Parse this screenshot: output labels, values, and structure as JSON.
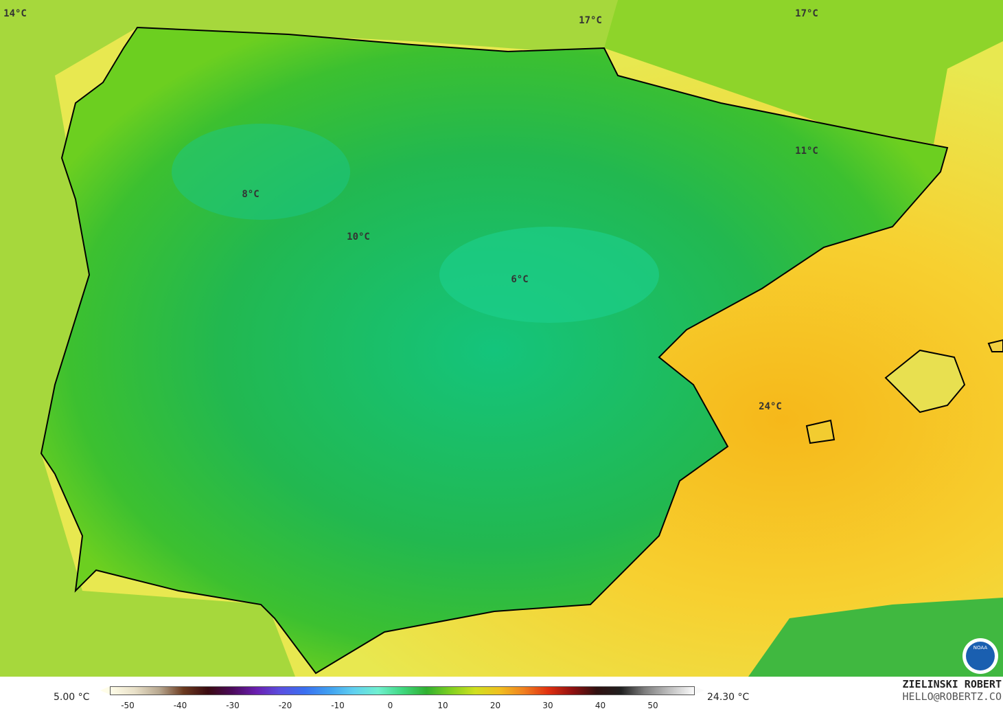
{
  "map": {
    "labels": [
      "14°C",
      "17°C",
      "17°C",
      "11°C",
      "8°C",
      "10°C",
      "6°C",
      "24°C"
    ]
  },
  "legend": {
    "min": "5.00 °C",
    "max": "24.30 °C",
    "ticks": [
      "-50",
      "-40",
      "-30",
      "-20",
      "-10",
      "0",
      "10",
      "20",
      "30",
      "40",
      "50"
    ]
  },
  "credits": {
    "author": "ZIELINSKI ROBERT",
    "contact": "HELLO@ROBERTZ.CO",
    "logo": "NOAA"
  }
}
